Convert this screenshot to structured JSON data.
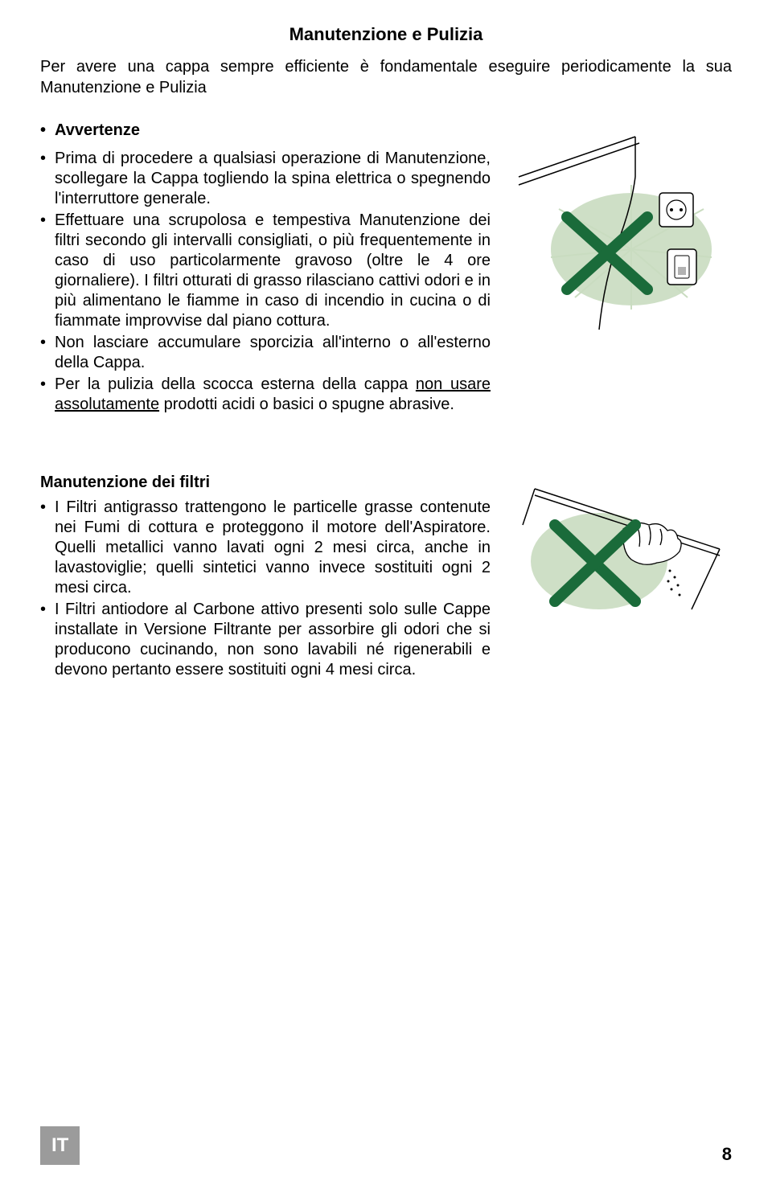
{
  "page": {
    "title": "Manutenzione e Pulizia",
    "intro": "Per avere una cappa sempre efficiente è fondamentale eseguire periodicamente la sua Manutenzione e Pulizia",
    "langCode": "IT",
    "pageNumber": "8"
  },
  "sections": {
    "avvertenze": {
      "heading": "Avvertenze",
      "items": [
        "Prima di procedere a qualsiasi operazione di Manutenzione, scollegare la Cappa togliendo la spina elettrica o spegnendo l'interruttore generale.",
        "Effettuare una scrupolosa e tempestiva Manutenzione dei filtri secondo gli intervalli consigliati, o più frequentemente in caso di uso particolarmente gravoso (oltre le 4 ore giornaliere). I filtri otturati di grasso rilasciano cattivi odori e in più alimentano le fiamme in caso di incendio in cucina o di fiammate improvvise dal piano cottura.",
        "Non lasciare accumulare sporcizia all'interno o all'esterno della Cappa.",
        "Per la pulizia della scocca esterna della cappa <span class=\"underline\">non usare assolutamente</span> prodotti acidi o basici o spugne abrasive."
      ]
    },
    "filtri": {
      "heading": "Manutenzione dei filtri",
      "items": [
        "I Filtri antigrasso trattengono le particelle grasse contenute nei Fumi di cottura e proteggono il motore dell'Aspiratore. Quelli metallici vanno lavati ogni 2 mesi circa, anche in lavastoviglie; quelli sintetici vanno invece sostituiti ogni 2 mesi circa.",
        "I Filtri antiodore al Carbone attivo presenti solo sulle Cappe installate in Versione Filtrante per assorbire gli odori che si producono cucinando, non sono lavabili né rigenerabili e devono pertanto essere sostituiti ogni 4 mesi circa."
      ]
    }
  },
  "figures": {
    "colors": {
      "fill": "#c9dcc0",
      "stroke": "#1a6b3a",
      "line": "#000000",
      "x": "#1a6b3a"
    }
  }
}
